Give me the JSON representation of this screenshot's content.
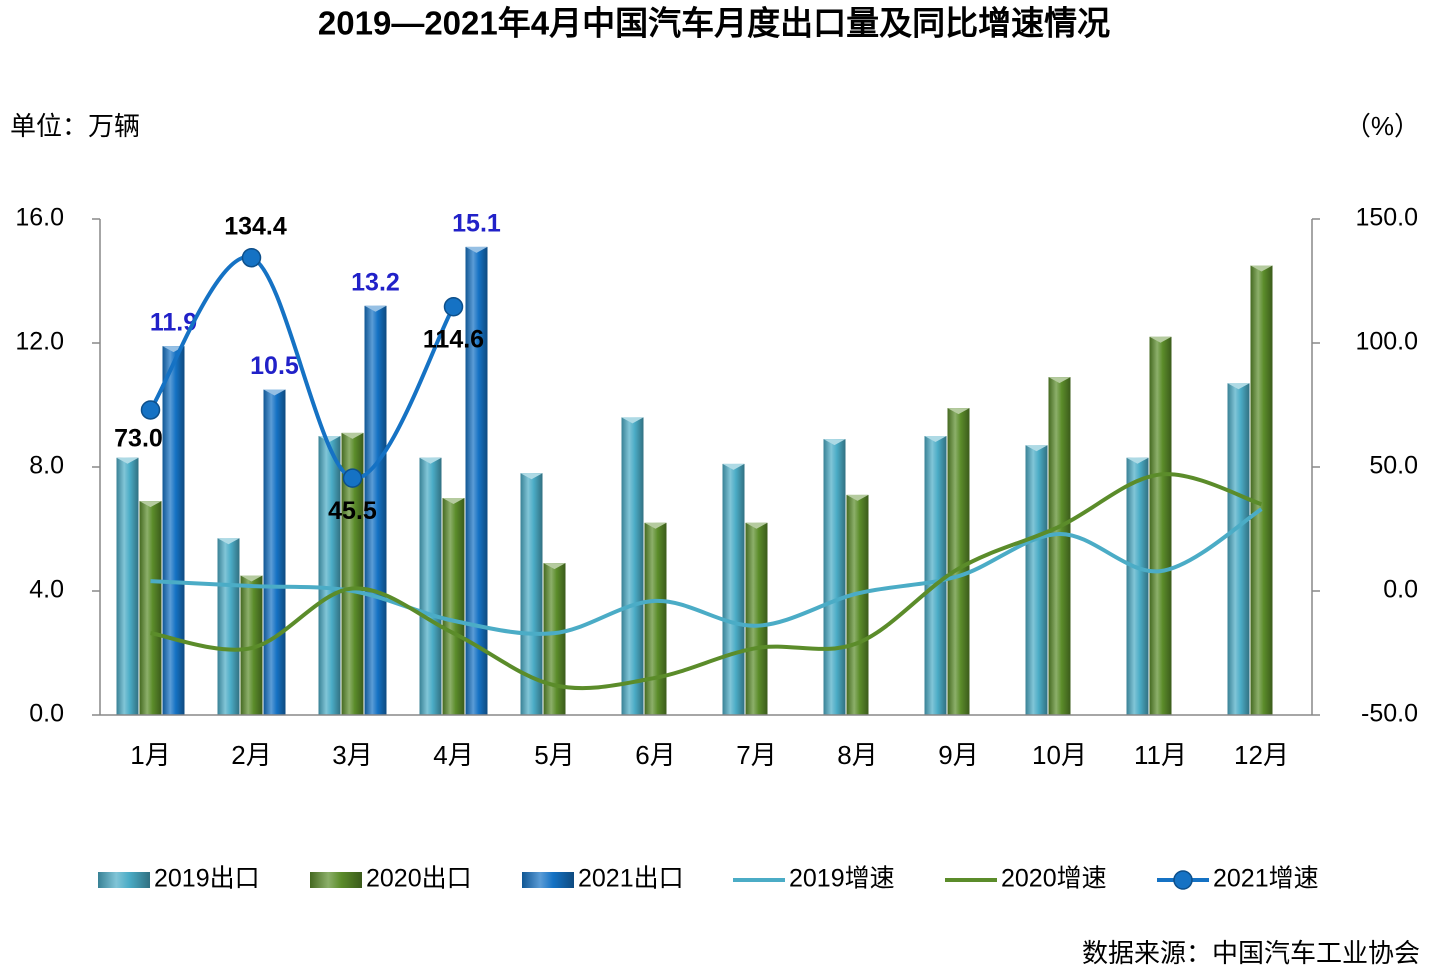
{
  "chart_data": {
    "type": "bar-line",
    "title": "2019—2021年4月中国汽车月度出口量及同比增速情况",
    "y_label": "单位：万辆",
    "y2_label": "（%）",
    "source": "数据来源：中国汽车工业协会",
    "categories": [
      "1月",
      "2月",
      "3月",
      "4月",
      "5月",
      "6月",
      "7月",
      "8月",
      "9月",
      "10月",
      "11月",
      "12月"
    ],
    "ylim": [
      0,
      16
    ],
    "yticks": [
      {
        "value": 0,
        "label": "0.0"
      },
      {
        "value": 4,
        "label": "4.0"
      },
      {
        "value": 8,
        "label": "8.0"
      },
      {
        "value": 12,
        "label": "12.0"
      },
      {
        "value": 16,
        "label": "16.0"
      }
    ],
    "y2lim": [
      -50,
      150
    ],
    "y2ticks": [
      {
        "value": -50,
        "label": "-50.0"
      },
      {
        "value": 0,
        "label": "0.0"
      },
      {
        "value": 50,
        "label": "50.0"
      },
      {
        "value": 100,
        "label": "100.0"
      },
      {
        "value": 150,
        "label": "150.0"
      }
    ],
    "series": [
      {
        "name": "2019出口",
        "kind": "bar",
        "color": "#4bacc6",
        "values": [
          8.3,
          5.7,
          9.0,
          8.3,
          7.8,
          9.6,
          8.1,
          8.9,
          9.0,
          8.7,
          8.3,
          10.7
        ]
      },
      {
        "name": "2020出口",
        "kind": "bar",
        "color": "#5b8c2a",
        "values": [
          6.9,
          4.5,
          9.1,
          7.0,
          4.9,
          6.2,
          6.2,
          7.1,
          9.9,
          10.9,
          12.2,
          14.5
        ]
      },
      {
        "name": "2021出口",
        "kind": "bar",
        "color": "#1572c4",
        "label_color": "#2121c8",
        "values": [
          11.9,
          10.5,
          13.2,
          15.1,
          null,
          null,
          null,
          null,
          null,
          null,
          null,
          null
        ],
        "value_labels": [
          "11.9",
          "10.5",
          "13.2",
          "15.1",
          null,
          null,
          null,
          null,
          null,
          null,
          null,
          null
        ]
      },
      {
        "name": "2019增速",
        "kind": "line",
        "axis": "y2",
        "color": "#4bacc6",
        "values": [
          4,
          2,
          0,
          -12,
          -17,
          -4,
          -14,
          -1,
          6,
          23,
          8,
          33
        ]
      },
      {
        "name": "2020增速",
        "kind": "line",
        "axis": "y2",
        "color": "#5b8c2a",
        "values": [
          -17,
          -23,
          1,
          -17,
          -38,
          -35,
          -23,
          -21,
          9,
          26,
          47,
          35
        ]
      },
      {
        "name": "2021增速",
        "kind": "line",
        "axis": "y2",
        "color": "#1572c4",
        "marker": true,
        "values": [
          73.0,
          134.4,
          45.5,
          114.6,
          null,
          null,
          null,
          null,
          null,
          null,
          null,
          null
        ],
        "value_labels": [
          "73.0",
          "134.4",
          "45.5",
          "114.6",
          null,
          null,
          null,
          null,
          null,
          null,
          null,
          null
        ]
      }
    ]
  }
}
